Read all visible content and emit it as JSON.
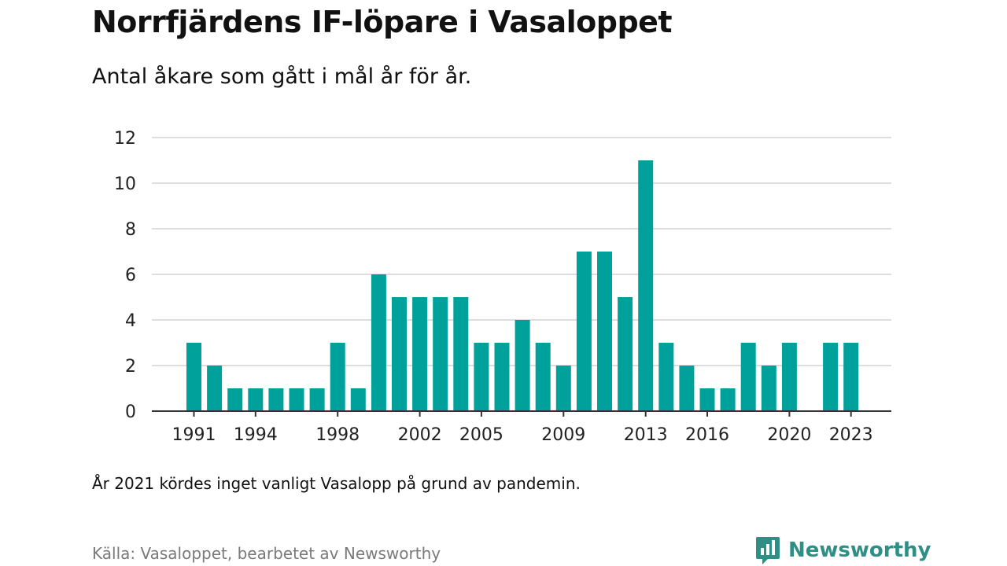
{
  "title": "Norrfjärdens IF-löpare i Vasaloppet",
  "subtitle": "Antal åkare som gått i mål år för år.",
  "note": "År 2021 kördes inget vanligt Vasalopp på grund av pandemin.",
  "source": "Källa: Vasaloppet, bearbetet av Newsworthy",
  "brand": {
    "name": "Newsworthy",
    "icon": "newsworthy-logo-icon"
  },
  "colors": {
    "bar": "#00a19a",
    "grid": "#dddddd",
    "axis": "#333333",
    "brand": "#2f8f85"
  },
  "chart_data": {
    "type": "bar",
    "title": "",
    "xlabel": "",
    "ylabel": "",
    "ylim": [
      0,
      12
    ],
    "yticks": [
      0,
      2,
      4,
      6,
      8,
      10,
      12
    ],
    "xticks": [
      1991,
      1994,
      1998,
      2002,
      2005,
      2009,
      2013,
      2016,
      2020,
      2023
    ],
    "grid": true,
    "categories": [
      1991,
      1992,
      1993,
      1994,
      1995,
      1996,
      1997,
      1998,
      1999,
      2000,
      2001,
      2002,
      2003,
      2004,
      2005,
      2006,
      2007,
      2008,
      2009,
      2010,
      2011,
      2012,
      2013,
      2014,
      2015,
      2016,
      2017,
      2018,
      2019,
      2020,
      2021,
      2022,
      2023
    ],
    "values": [
      3,
      2,
      1,
      1,
      1,
      1,
      1,
      3,
      1,
      6,
      5,
      5,
      5,
      5,
      3,
      3,
      4,
      3,
      2,
      7,
      7,
      5,
      11,
      3,
      2,
      1,
      1,
      3,
      2,
      3,
      null,
      3,
      3
    ]
  }
}
